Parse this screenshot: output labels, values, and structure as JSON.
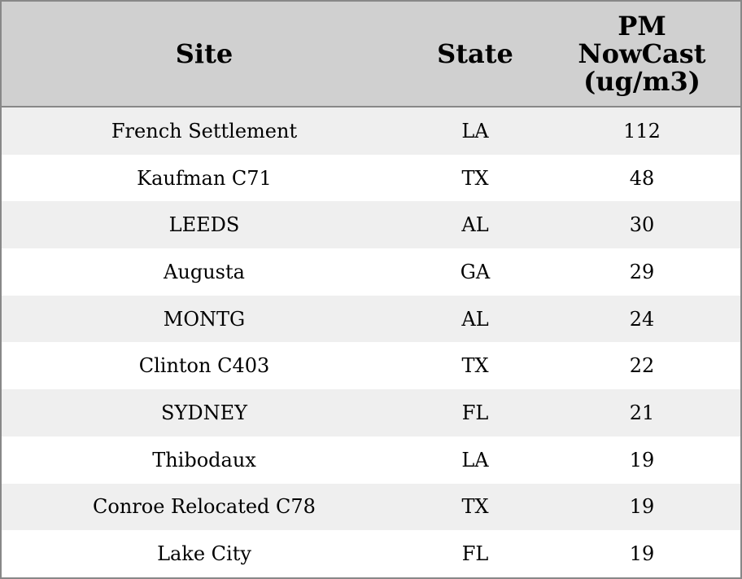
{
  "table": {
    "columns": [
      "Site",
      "State",
      "PM NowCast (ug/m3)"
    ],
    "rows": [
      [
        "French Settlement",
        "LA",
        112
      ],
      [
        "Kaufman C71",
        "TX",
        48
      ],
      [
        "LEEDS",
        "AL",
        30
      ],
      [
        "Augusta",
        "GA",
        29
      ],
      [
        "MONTG",
        "AL",
        24
      ],
      [
        "Clinton C403",
        "TX",
        22
      ],
      [
        "SYDNEY",
        "FL",
        21
      ],
      [
        "Thibodaux",
        "LA",
        19
      ],
      [
        "Conroe Relocated C78",
        "TX",
        19
      ],
      [
        "Lake City",
        "FL",
        19
      ]
    ]
  }
}
